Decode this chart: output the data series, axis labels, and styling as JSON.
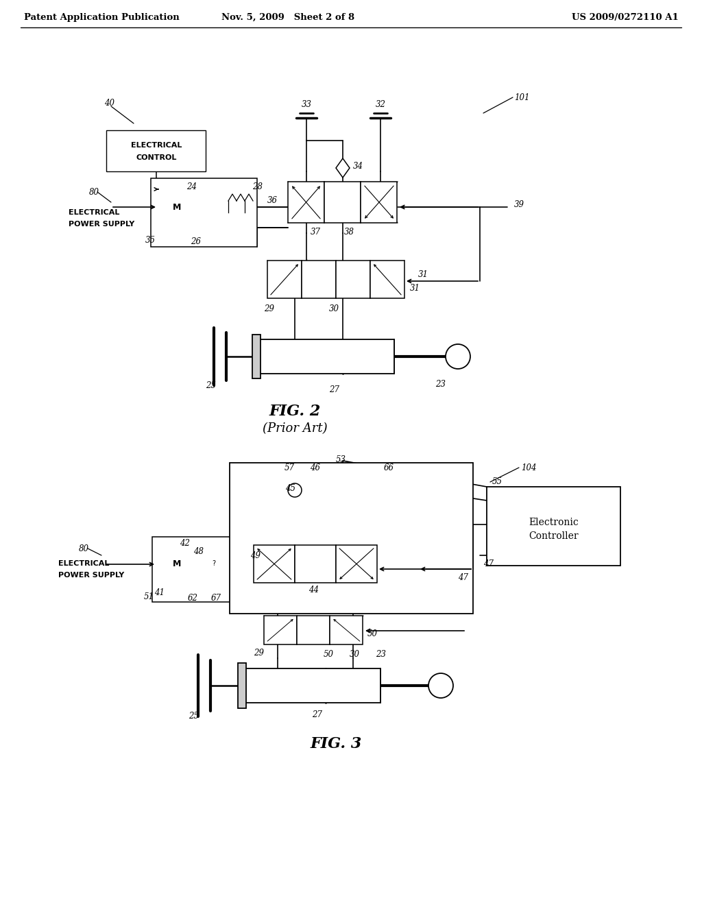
{
  "header_left": "Patent Application Publication",
  "header_mid": "Nov. 5, 2009   Sheet 2 of 8",
  "header_right": "US 2009/0272110 A1",
  "fig2_title": "FIG. 2",
  "fig2_subtitle": "(Prior Art)",
  "fig3_title": "FIG. 3",
  "background_color": "#ffffff",
  "line_color": "#000000"
}
